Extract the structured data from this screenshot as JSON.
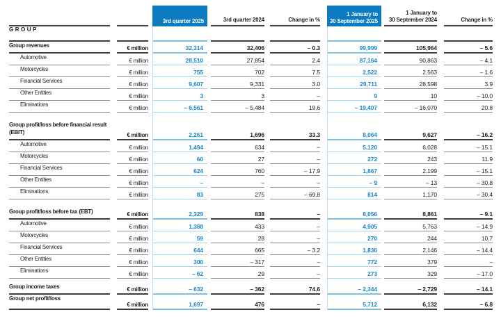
{
  "colors": {
    "accent_blue": "#0d7bc1",
    "value_blue": "#1987c8",
    "light_blue_line": "#a9d4ed",
    "blue_line_bold": "#7fbfe6",
    "vline_blue": "#b9ddf2",
    "dark_line": "#3d3d3d",
    "mid_line": "#8f8f8f",
    "text": "#1d1d1b"
  },
  "header": {
    "columns": [
      {
        "label": "3rd quarter 2025",
        "highlight": true
      },
      {
        "label": "3rd quarter 2024",
        "highlight": false
      },
      {
        "label": "Change in %",
        "highlight": false
      },
      {
        "label": "1 January to",
        "label2": "30 September 2025",
        "highlight": true
      },
      {
        "label": "1 January to",
        "label2": "30 September 2024",
        "highlight": false
      },
      {
        "label": "Change in %",
        "highlight": false
      }
    ]
  },
  "section_label": "GROUP",
  "table": {
    "unit_label": "€ million",
    "sections": [
      {
        "rows": [
          {
            "label": "Group revenues",
            "bold": true,
            "values": [
              "32,314",
              "32,406",
              "– 0.3",
              "99,999",
              "105,964",
              "– 5.6"
            ]
          },
          {
            "label": "Automotive",
            "sub": true,
            "values": [
              "28,510",
              "27,854",
              "2.4",
              "87,164",
              "90,863",
              "– 4.1"
            ]
          },
          {
            "label": "Motorcycles",
            "sub": true,
            "values": [
              "755",
              "702",
              "7.5",
              "2,522",
              "2,563",
              "– 1.6"
            ]
          },
          {
            "label": "Financial Services",
            "sub": true,
            "values": [
              "9,607",
              "9,331",
              "3.0",
              "29,711",
              "28,598",
              "3.9"
            ]
          },
          {
            "label": "Other Entities",
            "sub": true,
            "values": [
              "3",
              "3",
              "–",
              "9",
              "10",
              "– 10.0"
            ]
          },
          {
            "label": "Eliminations",
            "sub": true,
            "values": [
              "– 6,561",
              "– 5,484",
              "19.6",
              "– 19,407",
              "– 16,070",
              "20.8"
            ]
          }
        ]
      },
      {
        "rows": [
          {
            "label": "Group profit/loss before financial result",
            "label2": "(EBIT)",
            "bold": true,
            "values": [
              "2,261",
              "1,696",
              "33.3",
              "8,064",
              "9,627",
              "– 16.2"
            ]
          },
          {
            "label": "Automotive",
            "sub": true,
            "values": [
              "1,494",
              "634",
              "–",
              "5,120",
              "6,028",
              "– 15.1"
            ]
          },
          {
            "label": "Motorcycles",
            "sub": true,
            "values": [
              "60",
              "27",
              "–",
              "272",
              "243",
              "11.9"
            ]
          },
          {
            "label": "Financial Services",
            "sub": true,
            "values": [
              "624",
              "760",
              "– 17.9",
              "1,867",
              "2,199",
              "– 15.1"
            ]
          },
          {
            "label": "Other Entities",
            "sub": true,
            "values": [
              "–",
              "–",
              "–",
              "– 9",
              "– 13",
              "– 30.8"
            ]
          },
          {
            "label": "Eliminations",
            "sub": true,
            "values": [
              "83",
              "275",
              "– 69.8",
              "814",
              "1,170",
              "– 30.4"
            ]
          }
        ]
      },
      {
        "rows": [
          {
            "label": "Group profit/loss before tax (EBT)",
            "bold": true,
            "values": [
              "2,329",
              "838",
              "–",
              "8,056",
              "8,861",
              "– 9.1"
            ]
          },
          {
            "label": "Automotive",
            "sub": true,
            "values": [
              "1,388",
              "433",
              "–",
              "4,905",
              "5,763",
              "– 14.9"
            ]
          },
          {
            "label": "Motorcycles",
            "sub": true,
            "values": [
              "59",
              "28",
              "–",
              "270",
              "244",
              "10.7"
            ]
          },
          {
            "label": "Financial Services",
            "sub": true,
            "values": [
              "644",
              "665",
              "– 3.2",
              "1,836",
              "2,146",
              "– 14.4"
            ]
          },
          {
            "label": "Other Entities",
            "sub": true,
            "values": [
              "300",
              "– 317",
              "–",
              "772",
              "379",
              "–"
            ]
          },
          {
            "label": "Eliminations",
            "sub": true,
            "values": [
              "– 62",
              "29",
              "–",
              "273",
              "329",
              "– 17.0"
            ]
          }
        ]
      },
      {
        "rows": [
          {
            "label": "Group income taxes",
            "bold": true,
            "values": [
              "– 632",
              "– 362",
              "74.6",
              "– 2,344",
              "– 2,729",
              "– 14.1"
            ]
          },
          {
            "label": "Group net profit/loss",
            "bold": true,
            "tall": true,
            "values": [
              "1,697",
              "476",
              "–",
              "5,712",
              "6,132",
              "– 6.8"
            ]
          }
        ]
      }
    ]
  }
}
